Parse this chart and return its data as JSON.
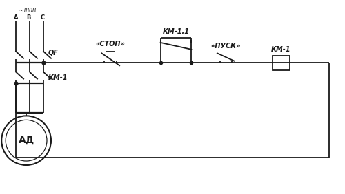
{
  "bg_color": "#ffffff",
  "line_color": "#1a1a1a",
  "labels": {
    "voltage": "~380В",
    "phaseA": "A",
    "phaseB": "B",
    "phaseC": "C",
    "QF": "QF",
    "KM1_main": "КМ-1",
    "stop_btn": "«СТОП»",
    "km11": "КМ-1.1",
    "start_btn": "«ПУСК»",
    "km1_coil": "КМ-1",
    "motor": "АД"
  }
}
